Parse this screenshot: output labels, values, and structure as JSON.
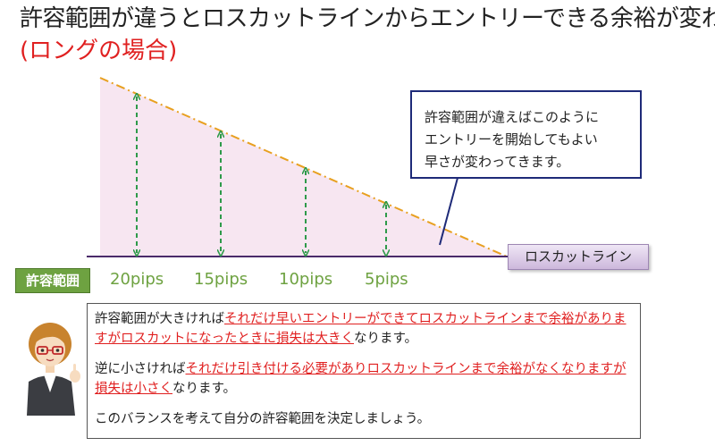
{
  "header": {
    "title": "許容範囲が違うとロスカットラインからエントリーできる余裕が変わる",
    "subtitle": "(ロングの場合)"
  },
  "callout": {
    "lines": [
      "許容範囲が違えばこのように",
      "エントリーを開始してもよい",
      "早さが変わってきます。"
    ]
  },
  "losscut_label": "ロスカットライン",
  "range_label": "許容範囲",
  "pips_labels": [
    "20pips",
    "15pips",
    "10pips",
    "5pips"
  ],
  "explanation": {
    "p1_before": "許容範囲が大きければ",
    "p1_highlight": "それだけ早いエントリーができてロスカットラインまで余裕がありますがロスカットになったときに損失は大きく",
    "p1_after": "なります。",
    "p2_before": "逆に小さければ",
    "p2_highlight": "それだけ引き付ける必要がありロスカットラインまで余裕がなくなりますが損失は小さく",
    "p2_after": "なります。",
    "p3": "このバランスを考えて自分の許容範囲を決定しましょう。"
  },
  "colors": {
    "fill": "#f7e6f1",
    "dash_line": "#e8a020",
    "arrow": "#2e9a4a",
    "baseline": "#4a2a6a",
    "callout_border": "#1e2a78",
    "highlight_text": "#e02020",
    "label_green": "#6ea241"
  }
}
